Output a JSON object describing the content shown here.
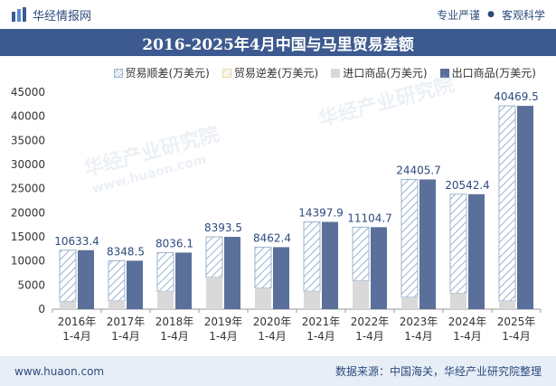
{
  "header": {
    "brand": "华经情报网",
    "tag1": "专业严谨",
    "tag2": "客观科学"
  },
  "title": "2016-2025年4月中国与马里贸易差额",
  "legend": [
    {
      "key": "surplus",
      "label": "贸易顺差(万美元)"
    },
    {
      "key": "deficit",
      "label": "贸易逆差(万美元)"
    },
    {
      "key": "import",
      "label": "进口商品(万美元)"
    },
    {
      "key": "export",
      "label": "出口商品(万美元)"
    }
  ],
  "watermark": {
    "brand": "华经产业研究院",
    "url": "www.huaon.com"
  },
  "footer": {
    "website": "www.huaon.com",
    "source": "数据来源：中国海关，华经产业研究院整理"
  },
  "colors": {
    "title_bg": "#3c5a8f",
    "export": "#5b6f9b",
    "import": "#d9d9d9",
    "surplus_hatch": "#9bb3cc",
    "deficit_hatch": "#e5dca8",
    "footer_bg": "#e8eef6",
    "brand_text": "#2c4a7e"
  },
  "chart_data": {
    "type": "bar",
    "categories": [
      "2016年\n1-4月",
      "2017年\n1-4月",
      "2018年\n1-4月",
      "2019年\n1-4月",
      "2020年\n1-4月",
      "2021年\n1-4月",
      "2022年\n1-4月",
      "2023年\n1-4月",
      "2024年\n1-4月",
      "2025年\n1-4月"
    ],
    "series": [
      {
        "name": "贸易顺差(万美元)",
        "values": [
          10633.4,
          8348.5,
          8036.1,
          8393.5,
          8462.4,
          14397.9,
          11104.7,
          24405.7,
          20542.4,
          40469.5
        ]
      },
      {
        "name": "贸易逆差(万美元)",
        "values": [
          0,
          0,
          0,
          0,
          0,
          0,
          0,
          0,
          0,
          0
        ]
      },
      {
        "name": "进口商品(万美元)",
        "values": [
          1600,
          1700,
          3700,
          6600,
          4400,
          3700,
          5900,
          2500,
          3300,
          1700
        ]
      },
      {
        "name": "出口商品(万美元)",
        "values": [
          12233.4,
          10048.5,
          11736.1,
          14993.5,
          12862.4,
          18097.9,
          17004.7,
          26905.7,
          23842.4,
          42169.5
        ]
      }
    ],
    "data_labels": [
      "10633.4",
      "8348.5",
      "8036.1",
      "8393.5",
      "8462.4",
      "14397.9",
      "11104.7",
      "24405.7",
      "20542.4",
      "40469.5"
    ],
    "ylim": [
      0,
      45000
    ],
    "yticks": [
      0,
      5000,
      10000,
      15000,
      20000,
      25000,
      30000,
      35000,
      40000,
      45000
    ],
    "xlabel": "",
    "ylabel": "",
    "legend_position": "top-right",
    "grid": false
  }
}
